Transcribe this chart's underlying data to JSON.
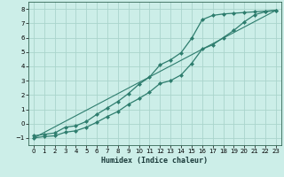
{
  "title": "",
  "xlabel": "Humidex (Indice chaleur)",
  "ylabel": "",
  "bg_color": "#cceee8",
  "grid_color": "#aad4cc",
  "line_color": "#2e7d6e",
  "xlim": [
    -0.5,
    23.5
  ],
  "ylim": [
    -1.5,
    8.5
  ],
  "xticks": [
    0,
    1,
    2,
    3,
    4,
    5,
    6,
    7,
    8,
    9,
    10,
    11,
    12,
    13,
    14,
    15,
    16,
    17,
    18,
    19,
    20,
    21,
    22,
    23
  ],
  "yticks": [
    -1,
    0,
    1,
    2,
    3,
    4,
    5,
    6,
    7,
    8
  ],
  "upper_x": [
    0,
    1,
    2,
    3,
    4,
    5,
    6,
    7,
    8,
    9,
    10,
    11,
    12,
    13,
    14,
    15,
    16,
    17,
    18,
    19,
    20,
    21,
    22,
    23
  ],
  "upper_y": [
    -0.85,
    -0.75,
    -0.65,
    -0.25,
    -0.15,
    0.15,
    0.65,
    1.1,
    1.55,
    2.1,
    2.75,
    3.25,
    4.1,
    4.45,
    4.95,
    5.95,
    7.25,
    7.55,
    7.65,
    7.7,
    7.75,
    7.8,
    7.85,
    7.9
  ],
  "lower_x": [
    0,
    1,
    2,
    3,
    4,
    5,
    6,
    7,
    8,
    9,
    10,
    11,
    12,
    13,
    14,
    15,
    16,
    17,
    18,
    19,
    20,
    21,
    22,
    23
  ],
  "lower_y": [
    -1.0,
    -0.9,
    -0.85,
    -0.6,
    -0.5,
    -0.25,
    0.1,
    0.5,
    0.85,
    1.35,
    1.75,
    2.2,
    2.8,
    3.0,
    3.4,
    4.2,
    5.2,
    5.5,
    6.0,
    6.5,
    7.1,
    7.6,
    7.8,
    7.9
  ],
  "line_x": [
    0,
    23
  ],
  "line_y": [
    -1.0,
    7.9
  ]
}
